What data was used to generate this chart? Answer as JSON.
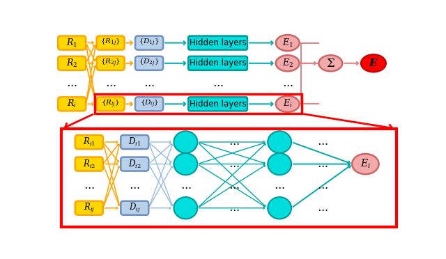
{
  "fig_width": 6.4,
  "fig_height": 3.72,
  "dpi": 100,
  "bg_color": "#ffffff",
  "yellow_color": "#FFD700",
  "yellow_edge": "#FFA500",
  "blue_color": "#B8D0EA",
  "blue_edge": "#7090C0",
  "cyan_color": "#00DDDD",
  "cyan_edge": "#009999",
  "pink_color": "#F4AAAA",
  "pink_edge": "#CC6666",
  "red_color": "#FF0000",
  "red_edge": "#CC0000",
  "teal_arrow": "#00AAAA",
  "pink_arrow": "#DD8888",
  "hidden_label": "Hidden layers"
}
